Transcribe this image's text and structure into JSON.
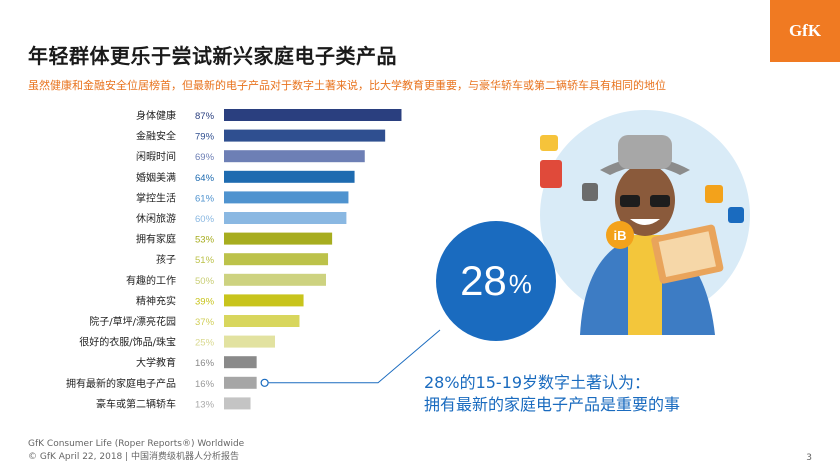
{
  "title": "年轻群体更乐于尝试新兴家庭电子类产品",
  "subtitle": "虽然健康和金融安全位居榜首，但最新的电子产品对于数字土著来说，比大学教育更重要，与豪华轿车或第二辆轿车具有相同的地位",
  "logo": "GfK",
  "chart_data": {
    "type": "bar",
    "orientation": "horizontal",
    "categories": [
      "身体健康",
      "金融安全",
      "闲暇时间",
      "婚姻美满",
      "掌控生活",
      "休闲旅游",
      "拥有家庭",
      "孩子",
      "有趣的工作",
      "精神充实",
      "院子/草坪/漂亮花园",
      "很好的衣服/饰品/珠宝",
      "大学教育",
      "拥有最新的家庭电子产品",
      "豪车或第二辆轿车"
    ],
    "values": [
      87,
      79,
      69,
      64,
      61,
      60,
      53,
      51,
      50,
      39,
      37,
      25,
      16,
      16,
      13
    ],
    "labels": [
      "87%",
      "79%",
      "69%",
      "64%",
      "61%",
      "60%",
      "53%",
      "51%",
      "50%",
      "39%",
      "37%",
      "25%",
      "16%",
      "16%",
      "13%"
    ],
    "colors": [
      "#2a3f7f",
      "#2f4f90",
      "#6d7fb5",
      "#1e6bb0",
      "#4f93cf",
      "#8ab8e2",
      "#a7ad1f",
      "#bcc24a",
      "#cdd280",
      "#c8c41c",
      "#d8d65d",
      "#e2e2a0",
      "#8a8a8a",
      "#a6a6a6",
      "#c4c4c4"
    ],
    "label_colors": [
      "#2a3f7f",
      "#2f4f90",
      "#6d7fb5",
      "#1e6bb0",
      "#4f93cf",
      "#8ab8e2",
      "#a7ad1f",
      "#bcc24a",
      "#c9ce75",
      "#c8c41c",
      "#d1cf5a",
      "#d9d98f",
      "#8a8a8a",
      "#999999",
      "#aaaaaa"
    ],
    "highlight_category": "拥有最新的家庭电子产品",
    "xlim": [
      0,
      100
    ]
  },
  "bubble": {
    "value": "28",
    "unit": "%"
  },
  "callout": {
    "line1": "28%的15-19岁数字土著认为：",
    "line2": "拥有最新的家庭电子产品是重要的事"
  },
  "footer": {
    "line1": "GfK Consumer Life (Roper Reports®) Worldwide",
    "line2": "© GfK April 22, 2018 | 中国消费级机器人分析报告"
  },
  "page_number": "3",
  "icons": [
    "person-illustration",
    "tablet-icon",
    "ib-badge-icon",
    "app-icons"
  ]
}
